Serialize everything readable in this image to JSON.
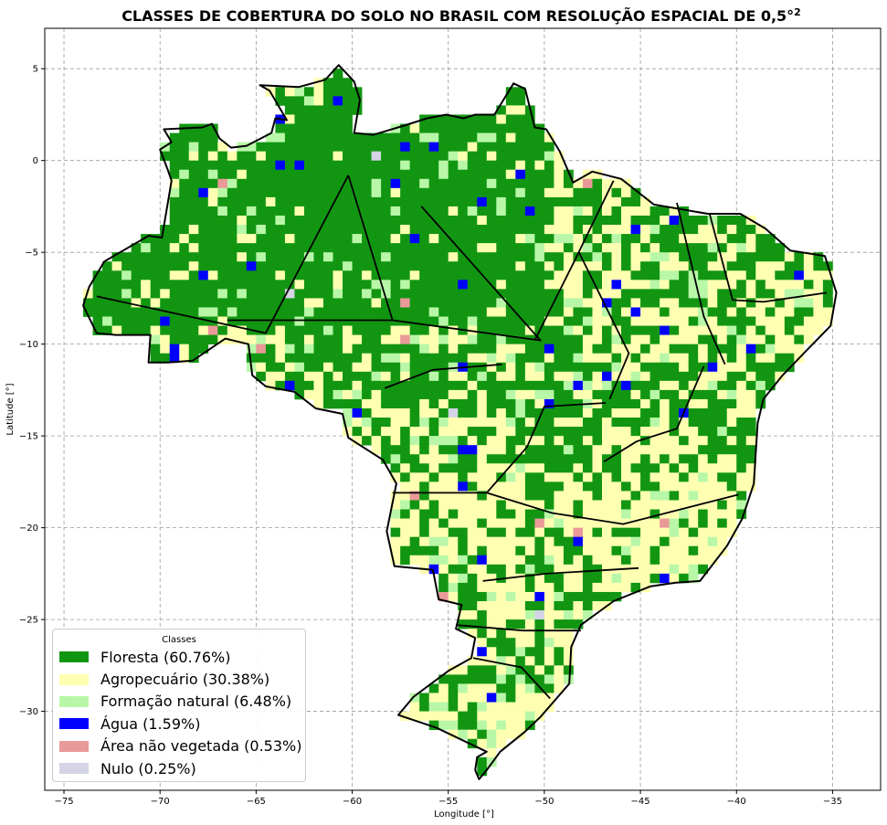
{
  "chart_data": {
    "type": "map",
    "title": "CLASSES DE COBERTURA DO SOLO NO BRASIL COM RESOLUÇÃO ESPACIAL DE 0,5°",
    "title_superscript": "2",
    "xlabel": "Longitude [°]",
    "ylabel": "Latitude [°]",
    "xlim": [
      -76,
      -32.5
    ],
    "ylim": [
      -34.3,
      7.2
    ],
    "xticks": [
      -75,
      -70,
      -65,
      -60,
      -55,
      -50,
      -45,
      -40,
      -35
    ],
    "yticks": [
      5,
      0,
      -5,
      -10,
      -15,
      -20,
      -25,
      -30
    ],
    "xtick_labels": [
      "−75",
      "−70",
      "−65",
      "−60",
      "−55",
      "−50",
      "−45",
      "−40",
      "−35"
    ],
    "ytick_labels": [
      "5",
      "0",
      "−5",
      "−10",
      "−15",
      "−20",
      "−25",
      "−30"
    ],
    "grid": true,
    "resolution_deg": 0.5,
    "legend": {
      "title": "Classes",
      "position": "lower-left",
      "entries": [
        {
          "label": "Floresta (60.76%)",
          "color": "#129612",
          "share": 60.76
        },
        {
          "label": "Agropecuário (30.38%)",
          "color": "#ffffb2",
          "share": 30.38
        },
        {
          "label": "Formação natural (6.48%)",
          "color": "#b9f7a8",
          "share": 6.48
        },
        {
          "label": "Água (1.59%)",
          "color": "#0000ff",
          "share": 1.59
        },
        {
          "label": "Área não vegetada (0.53%)",
          "color": "#ea9999",
          "share": 0.53
        },
        {
          "label": "Nulo (0.25%)",
          "color": "#d4d4e6",
          "share": 0.25
        }
      ]
    },
    "outline_lonlat": [
      [
        -51.6,
        4.2
      ],
      [
        -51,
        3.9
      ],
      [
        -50.5,
        1.8
      ],
      [
        -49.9,
        1.7
      ],
      [
        -49.2,
        0.5
      ],
      [
        -48.5,
        -1.2
      ],
      [
        -47.5,
        -0.6
      ],
      [
        -46,
        -1
      ],
      [
        -44.3,
        -2.4
      ],
      [
        -41.5,
        -2.9
      ],
      [
        -39.8,
        -2.9
      ],
      [
        -38.5,
        -3.7
      ],
      [
        -37.2,
        -4.9
      ],
      [
        -35.4,
        -5.2
      ],
      [
        -34.8,
        -7.2
      ],
      [
        -35.1,
        -9
      ],
      [
        -36.5,
        -10.5
      ],
      [
        -37.6,
        -11.7
      ],
      [
        -38.6,
        -13
      ],
      [
        -38.9,
        -14.3
      ],
      [
        -39.1,
        -17.6
      ],
      [
        -39.7,
        -19.5
      ],
      [
        -40.5,
        -21
      ],
      [
        -41.9,
        -22.9
      ],
      [
        -43.2,
        -23
      ],
      [
        -44.5,
        -23.2
      ],
      [
        -46.4,
        -24
      ],
      [
        -48.1,
        -25.3
      ],
      [
        -48.6,
        -26.5
      ],
      [
        -48.7,
        -28.5
      ],
      [
        -50.2,
        -30.3
      ],
      [
        -51,
        -31.1
      ],
      [
        -52.3,
        -32.2
      ],
      [
        -53,
        -33.2
      ],
      [
        -53.4,
        -33.7
      ],
      [
        -53.6,
        -33.2
      ],
      [
        -53.5,
        -32.5
      ],
      [
        -53,
        -32.2
      ],
      [
        -53.8,
        -31.8
      ],
      [
        -55.6,
        -30.9
      ],
      [
        -57.6,
        -30.2
      ],
      [
        -56.8,
        -29.2
      ],
      [
        -55,
        -27.8
      ],
      [
        -53.8,
        -27.1
      ],
      [
        -53.6,
        -26
      ],
      [
        -54.4,
        -25.6
      ],
      [
        -54.6,
        -25.5
      ],
      [
        -54.3,
        -24.2
      ],
      [
        -55.5,
        -23.9
      ],
      [
        -55.8,
        -22.3
      ],
      [
        -57.8,
        -22.1
      ],
      [
        -58.2,
        -20.2
      ],
      [
        -57.7,
        -17.6
      ],
      [
        -58.4,
        -16.3
      ],
      [
        -60.2,
        -15.1
      ],
      [
        -60.5,
        -13.8
      ],
      [
        -61.9,
        -13.5
      ],
      [
        -63,
        -12.6
      ],
      [
        -64.5,
        -12.3
      ],
      [
        -65.2,
        -11.7
      ],
      [
        -65.4,
        -10
      ],
      [
        -66.6,
        -9.7
      ],
      [
        -68.3,
        -10.9
      ],
      [
        -69.6,
        -11
      ],
      [
        -70.6,
        -11
      ],
      [
        -70.5,
        -9.5
      ],
      [
        -72.3,
        -9.5
      ],
      [
        -73.3,
        -9.4
      ],
      [
        -74,
        -7.9
      ],
      [
        -73.7,
        -6.9
      ],
      [
        -72.9,
        -5.5
      ],
      [
        -70.6,
        -4.1
      ],
      [
        -69.9,
        -4.2
      ],
      [
        -69.4,
        -1.1
      ],
      [
        -69.6,
        -0.5
      ],
      [
        -70,
        0.6
      ],
      [
        -69.4,
        1
      ],
      [
        -69.8,
        1.7
      ],
      [
        -67.8,
        1.8
      ],
      [
        -67.3,
        2
      ],
      [
        -66.9,
        1.2
      ],
      [
        -66.3,
        0.7
      ],
      [
        -65.5,
        0.8
      ],
      [
        -64.2,
        1.5
      ],
      [
        -64,
        2.3
      ],
      [
        -63.4,
        2.2
      ],
      [
        -64.3,
        3.8
      ],
      [
        -64.8,
        4.1
      ],
      [
        -62.8,
        4
      ],
      [
        -61.4,
        4.4
      ],
      [
        -60.7,
        5.2
      ],
      [
        -59.9,
        4.3
      ],
      [
        -59.6,
        3.3
      ],
      [
        -59.9,
        1.5
      ],
      [
        -58.9,
        1.4
      ],
      [
        -57.3,
        1.9
      ],
      [
        -56.1,
        2.3
      ],
      [
        -55.1,
        2.5
      ],
      [
        -54.2,
        2.3
      ],
      [
        -53.6,
        2.5
      ],
      [
        -52.6,
        2.5
      ],
      [
        -51.6,
        4.2
      ]
    ],
    "state_borders_lonlat": [
      [
        [
          -60.2,
          -0.8
        ],
        [
          -64.5,
          -9.4
        ],
        [
          -73.3,
          -7.4
        ]
      ],
      [
        [
          -60.2,
          -0.8
        ],
        [
          -57.9,
          -8.7
        ],
        [
          -66.5,
          -8.7
        ]
      ],
      [
        [
          -57.9,
          -8.7
        ],
        [
          -50.2,
          -9.8
        ],
        [
          -56.4,
          -2.5
        ]
      ],
      [
        [
          -50.5,
          -9.8
        ],
        [
          -48.4,
          -5.4
        ],
        [
          -46.4,
          -1.1
        ]
      ],
      [
        [
          -48.2,
          -5
        ],
        [
          -45.6,
          -10.5
        ],
        [
          -46.6,
          -13
        ]
      ],
      [
        [
          -43.1,
          -2.3
        ],
        [
          -41.7,
          -8.5
        ],
        [
          -40.6,
          -11.1
        ]
      ],
      [
        [
          -41.4,
          -2.9
        ],
        [
          -40.2,
          -7.6
        ],
        [
          -38.6,
          -7.7
        ],
        [
          -35.3,
          -7.2
        ]
      ],
      [
        [
          -46.8,
          -13.2
        ],
        [
          -50,
          -13.4
        ],
        [
          -50.9,
          -15.6
        ],
        [
          -53,
          -18.1
        ],
        [
          -57.9,
          -18.1
        ]
      ],
      [
        [
          -53,
          -18.1
        ],
        [
          -49.6,
          -19.2
        ],
        [
          -45.9,
          -19.8
        ],
        [
          -39.9,
          -18.2
        ]
      ],
      [
        [
          -53.2,
          -22.9
        ],
        [
          -49.9,
          -22.5
        ],
        [
          -45.1,
          -22.2
        ]
      ],
      [
        [
          -54.6,
          -25.3
        ],
        [
          -51.1,
          -25.6
        ],
        [
          -48.1,
          -25.6
        ]
      ],
      [
        [
          -53.7,
          -27.1
        ],
        [
          -51.2,
          -27.6
        ],
        [
          -49.7,
          -29.3
        ]
      ],
      [
        [
          -41.7,
          -11.2
        ],
        [
          -43.1,
          -14.6
        ],
        [
          -45.2,
          -15.3
        ],
        [
          -46.9,
          -16.4
        ]
      ],
      [
        [
          -58.3,
          -12.4
        ],
        [
          -55.8,
          -11.4
        ],
        [
          -52.2,
          -11.1
        ]
      ]
    ],
    "classified_cells": "0.5° grid inside Brazil outline; dominant class Floresta in north/Amazon, Agropecuário in center-south, mixed Formação natural, scattered Água, Área não vegetada, Nulo cells"
  }
}
